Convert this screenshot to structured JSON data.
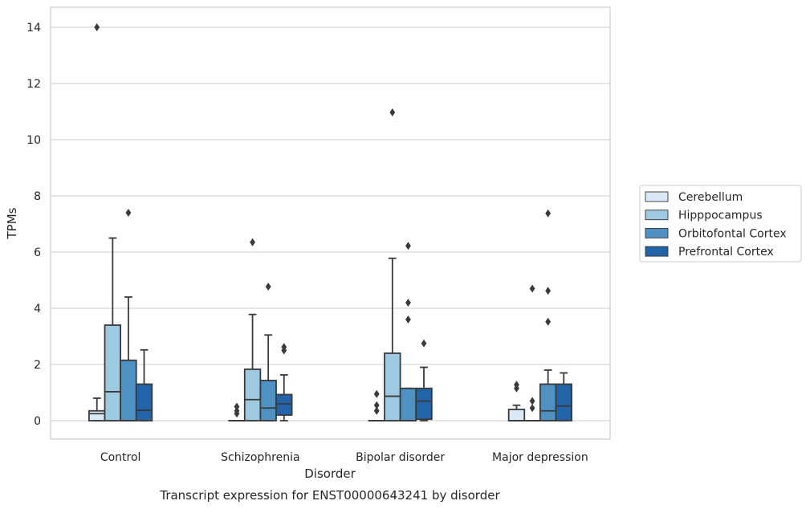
{
  "chart_data": {
    "type": "box",
    "title": "Transcript expression for ENST00000643241 by disorder",
    "xlabel": "Disorder",
    "ylabel": "TPMs",
    "ylim": [
      -0.65,
      14.7
    ],
    "yticks": [
      0,
      2,
      4,
      6,
      8,
      10,
      12,
      14
    ],
    "grid": "horizontal",
    "legend_position": "right",
    "categories": [
      "Control",
      "Schizophrenia",
      "Bipolar disorder",
      "Major depression"
    ],
    "series": [
      {
        "name": "Cerebellum",
        "color": "#dbe9f6",
        "boxes": [
          {
            "q1": 0.0,
            "median": 0.25,
            "q3": 0.35,
            "whisker_low": 0.0,
            "whisker_high": 0.8,
            "outliers": [
              14.0
            ]
          },
          {
            "q1": 0.0,
            "median": 0.0,
            "q3": 0.0,
            "whisker_low": 0.0,
            "whisker_high": 0.0,
            "outliers": [
              0.25,
              0.35,
              0.5
            ]
          },
          {
            "q1": 0.0,
            "median": 0.0,
            "q3": 0.0,
            "whisker_low": 0.0,
            "whisker_high": 0.0,
            "outliers": [
              0.35,
              0.55,
              0.95
            ]
          },
          {
            "q1": 0.0,
            "median": 0.0,
            "q3": 0.4,
            "whisker_low": 0.0,
            "whisker_high": 0.55,
            "outliers": [
              1.15,
              1.28
            ]
          }
        ]
      },
      {
        "name": "Hipppocampus",
        "color": "#9ecae1",
        "boxes": [
          {
            "q1": 0.0,
            "median": 1.03,
            "q3": 3.4,
            "whisker_low": 0.0,
            "whisker_high": 6.5,
            "outliers": []
          },
          {
            "q1": 0.0,
            "median": 0.75,
            "q3": 1.83,
            "whisker_low": 0.0,
            "whisker_high": 3.78,
            "outliers": [
              6.35
            ]
          },
          {
            "q1": 0.0,
            "median": 0.87,
            "q3": 2.4,
            "whisker_low": 0.0,
            "whisker_high": 5.78,
            "outliers": [
              10.97
            ]
          },
          {
            "q1": 0.0,
            "median": 0.0,
            "q3": 0.0,
            "whisker_low": 0.0,
            "whisker_high": 0.0,
            "outliers": [
              0.45,
              0.7,
              4.7
            ]
          }
        ]
      },
      {
        "name": "Orbitofontal Cortex",
        "color": "#4e92c4",
        "boxes": [
          {
            "q1": 0.0,
            "median": 0.0,
            "q3": 2.15,
            "whisker_low": 0.0,
            "whisker_high": 4.4,
            "outliers": [
              7.4
            ]
          },
          {
            "q1": 0.0,
            "median": 0.45,
            "q3": 1.43,
            "whisker_low": 0.0,
            "whisker_high": 3.05,
            "outliers": [
              4.77
            ]
          },
          {
            "q1": 0.0,
            "median": 0.0,
            "q3": 1.15,
            "whisker_low": 0.0,
            "whisker_high": 1.15,
            "outliers": [
              3.6,
              4.2,
              6.22
            ]
          },
          {
            "q1": 0.0,
            "median": 0.35,
            "q3": 1.3,
            "whisker_low": 0.0,
            "whisker_high": 1.8,
            "outliers": [
              3.52,
              4.62,
              7.38
            ]
          }
        ]
      },
      {
        "name": "Prefrontal Cortex",
        "color": "#2364a9",
        "boxes": [
          {
            "q1": 0.0,
            "median": 0.37,
            "q3": 1.3,
            "whisker_low": 0.0,
            "whisker_high": 2.52,
            "outliers": []
          },
          {
            "q1": 0.2,
            "median": 0.6,
            "q3": 0.93,
            "whisker_low": 0.0,
            "whisker_high": 1.63,
            "outliers": [
              2.5,
              2.62
            ]
          },
          {
            "q1": 0.05,
            "median": 0.7,
            "q3": 1.15,
            "whisker_low": 0.0,
            "whisker_high": 1.9,
            "outliers": [
              2.75
            ]
          },
          {
            "q1": 0.0,
            "median": 0.52,
            "q3": 1.3,
            "whisker_low": 0.0,
            "whisker_high": 1.7,
            "outliers": []
          }
        ]
      }
    ]
  }
}
